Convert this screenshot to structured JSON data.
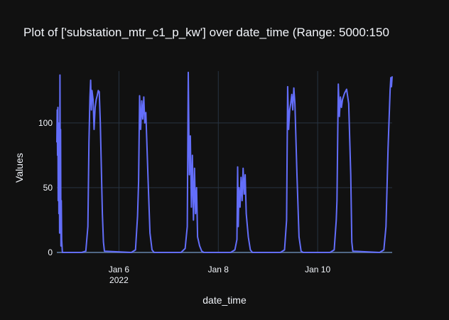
{
  "chart_data": {
    "type": "line",
    "title": "Plot of ['substation_mtr_c1_p_kw'] over date_time (Range: 5000:150",
    "xlabel": "date_time",
    "ylabel": "Values",
    "x_range": [
      "2022-01-04T18:00",
      "2022-01-11T12:00"
    ],
    "ylim": [
      0,
      140
    ],
    "y_ticks": [
      0,
      50,
      100
    ],
    "x_ticks": [
      {
        "at": "2022-01-06",
        "label": "Jan 6",
        "sublabel": "2022"
      },
      {
        "at": "2022-01-08",
        "label": "Jan 8",
        "sublabel": ""
      },
      {
        "at": "2022-01-10",
        "label": "Jan 10",
        "sublabel": ""
      }
    ],
    "grid": true,
    "colors": {
      "background": "#111111",
      "grid": "#283442",
      "series": "#636efa",
      "text": "#f2f5fa"
    },
    "series": [
      {
        "points": [
          [
            "2022-01-04T18:00",
            85
          ],
          [
            "2022-01-04T18:10",
            110
          ],
          [
            "2022-01-04T18:20",
            75
          ],
          [
            "2022-01-04T18:30",
            112
          ],
          [
            "2022-01-04T18:40",
            40
          ],
          [
            "2022-01-04T18:50",
            100
          ],
          [
            "2022-01-04T19:00",
            30
          ],
          [
            "2022-01-04T19:10",
            90
          ],
          [
            "2022-01-04T19:20",
            15
          ],
          [
            "2022-01-04T19:30",
            137
          ],
          [
            "2022-01-04T19:40",
            55
          ],
          [
            "2022-01-04T19:50",
            95
          ],
          [
            "2022-01-04T20:00",
            5
          ],
          [
            "2022-01-04T20:10",
            40
          ],
          [
            "2022-01-04T20:20",
            10
          ],
          [
            "2022-01-04T20:40",
            0
          ],
          [
            "2022-01-05T06:00",
            0
          ],
          [
            "2022-01-05T08:00",
            1
          ],
          [
            "2022-01-05T09:00",
            20
          ],
          [
            "2022-01-05T09:30",
            85
          ],
          [
            "2022-01-05T10:00",
            120
          ],
          [
            "2022-01-05T10:20",
            133
          ],
          [
            "2022-01-05T10:40",
            110
          ],
          [
            "2022-01-05T11:00",
            125
          ],
          [
            "2022-01-05T11:30",
            118
          ],
          [
            "2022-01-05T12:00",
            95
          ],
          [
            "2022-01-05T12:30",
            112
          ],
          [
            "2022-01-05T13:00",
            118
          ],
          [
            "2022-01-05T13:30",
            121
          ],
          [
            "2022-01-05T14:00",
            125
          ],
          [
            "2022-01-05T14:30",
            124
          ],
          [
            "2022-01-05T15:00",
            100
          ],
          [
            "2022-01-05T16:00",
            30
          ],
          [
            "2022-01-05T16:30",
            8
          ],
          [
            "2022-01-05T17:00",
            1
          ],
          [
            "2022-01-06T06:00",
            0
          ],
          [
            "2022-01-06T08:00",
            2
          ],
          [
            "2022-01-06T09:00",
            28
          ],
          [
            "2022-01-06T09:30",
            55
          ],
          [
            "2022-01-06T10:00",
            121
          ],
          [
            "2022-01-06T10:30",
            95
          ],
          [
            "2022-01-06T11:00",
            117
          ],
          [
            "2022-01-06T11:30",
            103
          ],
          [
            "2022-01-06T12:00",
            120
          ],
          [
            "2022-01-06T12:30",
            100
          ],
          [
            "2022-01-06T13:00",
            108
          ],
          [
            "2022-01-06T14:00",
            60
          ],
          [
            "2022-01-06T15:00",
            15
          ],
          [
            "2022-01-06T16:00",
            2
          ],
          [
            "2022-01-06T17:00",
            0
          ],
          [
            "2022-01-07T06:00",
            0
          ],
          [
            "2022-01-07T08:00",
            3
          ],
          [
            "2022-01-07T09:00",
            20
          ],
          [
            "2022-01-07T09:30",
            139
          ],
          [
            "2022-01-07T10:00",
            60
          ],
          [
            "2022-01-07T10:30",
            90
          ],
          [
            "2022-01-07T11:00",
            35
          ],
          [
            "2022-01-07T11:30",
            75
          ],
          [
            "2022-01-07T12:00",
            25
          ],
          [
            "2022-01-07T12:30",
            65
          ],
          [
            "2022-01-07T13:00",
            30
          ],
          [
            "2022-01-07T13:30",
            50
          ],
          [
            "2022-01-07T14:00",
            12
          ],
          [
            "2022-01-07T15:00",
            5
          ],
          [
            "2022-01-07T16:00",
            1
          ],
          [
            "2022-01-07T17:00",
            0
          ],
          [
            "2022-01-08T06:00",
            0
          ],
          [
            "2022-01-08T08:00",
            2
          ],
          [
            "2022-01-08T09:00",
            10
          ],
          [
            "2022-01-08T09:20",
            66
          ],
          [
            "2022-01-08T09:40",
            20
          ],
          [
            "2022-01-08T10:00",
            50
          ],
          [
            "2022-01-08T10:30",
            35
          ],
          [
            "2022-01-08T11:00",
            58
          ],
          [
            "2022-01-08T11:30",
            40
          ],
          [
            "2022-01-08T12:00",
            65
          ],
          [
            "2022-01-08T12:30",
            45
          ],
          [
            "2022-01-08T13:00",
            60
          ],
          [
            "2022-01-08T13:30",
            30
          ],
          [
            "2022-01-08T14:30",
            12
          ],
          [
            "2022-01-08T15:30",
            2
          ],
          [
            "2022-01-08T16:30",
            0
          ],
          [
            "2022-01-09T06:00",
            0
          ],
          [
            "2022-01-09T08:00",
            2
          ],
          [
            "2022-01-09T09:00",
            25
          ],
          [
            "2022-01-09T09:30",
            128
          ],
          [
            "2022-01-09T10:00",
            95
          ],
          [
            "2022-01-09T10:30",
            110
          ],
          [
            "2022-01-09T11:00",
            115
          ],
          [
            "2022-01-09T11:30",
            122
          ],
          [
            "2022-01-09T12:00",
            110
          ],
          [
            "2022-01-09T12:30",
            127
          ],
          [
            "2022-01-09T13:00",
            115
          ],
          [
            "2022-01-09T14:00",
            60
          ],
          [
            "2022-01-09T15:00",
            12
          ],
          [
            "2022-01-09T16:00",
            1
          ],
          [
            "2022-01-09T17:00",
            0
          ],
          [
            "2022-01-10T06:00",
            0
          ],
          [
            "2022-01-10T08:00",
            2
          ],
          [
            "2022-01-10T09:00",
            25
          ],
          [
            "2022-01-10T09:20",
            40
          ],
          [
            "2022-01-10T10:00",
            130
          ],
          [
            "2022-01-10T10:30",
            105
          ],
          [
            "2022-01-10T11:00",
            120
          ],
          [
            "2022-01-10T11:30",
            112
          ],
          [
            "2022-01-10T12:00",
            118
          ],
          [
            "2022-01-10T13:00",
            123
          ],
          [
            "2022-01-10T14:00",
            126
          ],
          [
            "2022-01-10T15:00",
            115
          ],
          [
            "2022-01-10T16:00",
            60
          ],
          [
            "2022-01-10T16:30",
            8
          ],
          [
            "2022-01-10T17:00",
            1
          ],
          [
            "2022-01-11T06:00",
            0
          ],
          [
            "2022-01-11T08:00",
            2
          ],
          [
            "2022-01-11T09:00",
            20
          ],
          [
            "2022-01-11T10:00",
            80
          ],
          [
            "2022-01-11T11:00",
            125
          ],
          [
            "2022-01-11T11:20",
            135
          ],
          [
            "2022-01-11T11:40",
            128
          ],
          [
            "2022-01-11T12:00",
            136
          ]
        ]
      }
    ]
  }
}
